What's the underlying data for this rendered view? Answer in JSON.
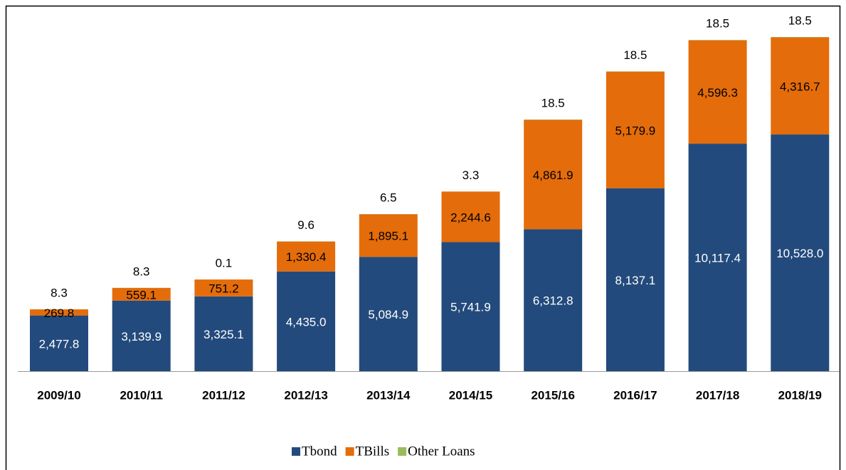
{
  "chart_data": {
    "type": "stacked-bar",
    "categories": [
      "2009/10",
      "2010/11",
      "2011/12",
      "2012/13",
      "2013/14",
      "2014/15",
      "2015/16",
      "2016/17",
      "2017/18",
      "2018/19"
    ],
    "series": [
      {
        "name": "Tbond",
        "color": "#234a7c",
        "values": [
          2477.8,
          3139.9,
          3325.1,
          4435.0,
          5084.9,
          5741.9,
          6312.8,
          8137.1,
          10117.4,
          10528.0
        ],
        "value_labels": [
          "2,477.8",
          "3,139.9",
          "3,325.1",
          "4,435.0",
          "5,084.9",
          "5,741.9",
          "6,312.8",
          "8,137.1",
          "10,117.4",
          "10,528.0"
        ]
      },
      {
        "name": "TBills",
        "color": "#e46c0a",
        "values": [
          269.8,
          559.1,
          751.2,
          1330.4,
          1895.1,
          2244.6,
          4861.9,
          5179.9,
          4596.3,
          4316.7
        ],
        "value_labels": [
          "269.8",
          "559.1",
          "751.2",
          "1,330.4",
          "1,895.1",
          "2,244.6",
          "4,861.9",
          "5,179.9",
          "4,596.3",
          "4,316.7"
        ]
      },
      {
        "name": "Other Loans",
        "color": "#9bbb59",
        "values": [
          8.3,
          8.3,
          0.1,
          9.6,
          6.5,
          3.3,
          18.5,
          18.5,
          18.5,
          18.5
        ]
      }
    ]
  }
}
